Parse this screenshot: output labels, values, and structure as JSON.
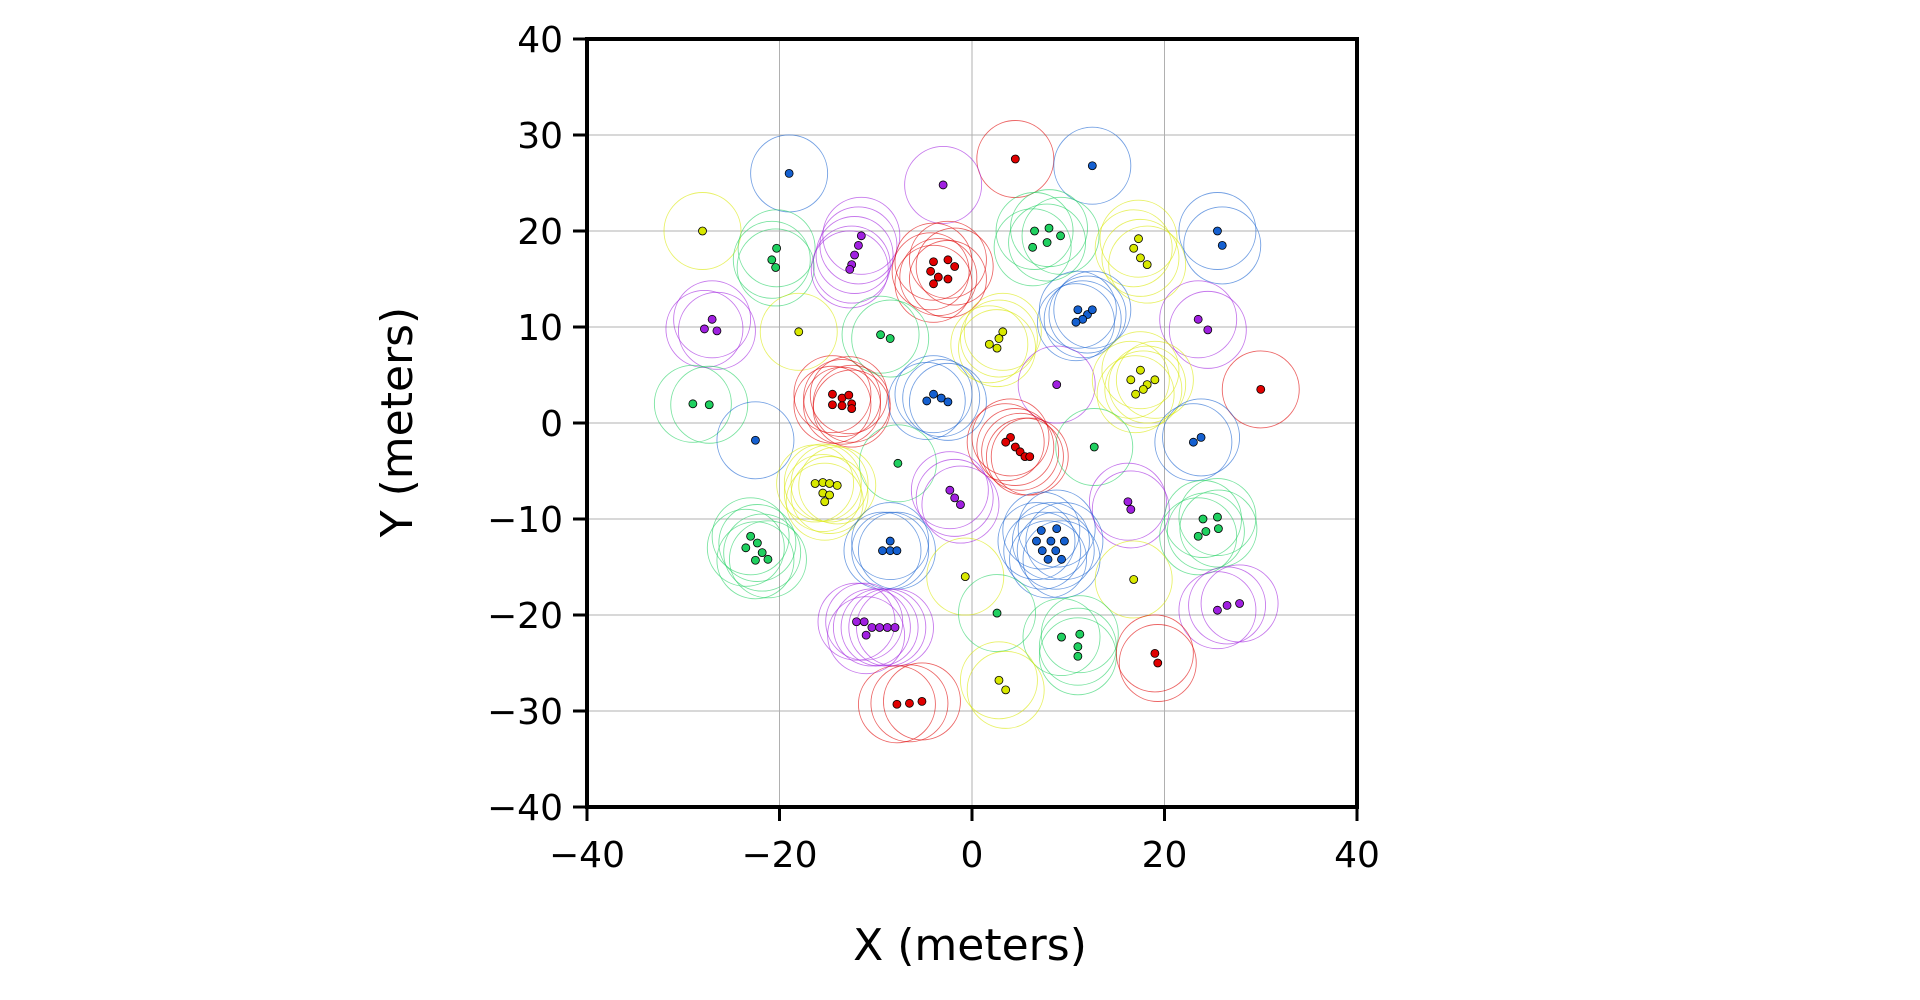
{
  "chart_data": {
    "type": "scatter",
    "title": "",
    "xlabel": "X (meters)",
    "ylabel": "Y (meters)",
    "xlim": [
      -40,
      40
    ],
    "ylim": [
      -40,
      40
    ],
    "x_ticks": [
      -40,
      -20,
      0,
      20,
      40
    ],
    "y_ticks": [
      -40,
      -30,
      -20,
      -10,
      0,
      10,
      20,
      30,
      40
    ],
    "x_tick_labels": [
      "−40",
      "−20",
      "0",
      "20",
      "40"
    ],
    "y_tick_labels": [
      "−40",
      "−30",
      "−20",
      "−10",
      "0",
      "10",
      "20",
      "30",
      "40"
    ],
    "grid": true,
    "legend": "none",
    "circle_radius": 4,
    "colors": {
      "red": "#e00000",
      "blue": "#1560d0",
      "magenta": "#a020e0",
      "green": "#20d060",
      "yellow": "#d8e800"
    },
    "clusters": [
      {
        "color": "blue",
        "points": [
          [
            -19,
            26
          ]
        ]
      },
      {
        "color": "red",
        "points": [
          [
            4.5,
            27.5
          ]
        ]
      },
      {
        "color": "blue",
        "points": [
          [
            12.5,
            26.8
          ]
        ]
      },
      {
        "color": "magenta",
        "points": [
          [
            -3,
            24.8
          ]
        ]
      },
      {
        "color": "yellow",
        "points": [
          [
            -28,
            20
          ]
        ]
      },
      {
        "color": "green",
        "points": [
          [
            -20.3,
            18.2
          ],
          [
            -20.8,
            17
          ],
          [
            -20.4,
            16.2
          ]
        ]
      },
      {
        "color": "magenta",
        "points": [
          [
            -11.5,
            19.5
          ],
          [
            -11.8,
            18.5
          ],
          [
            -12.2,
            17.5
          ],
          [
            -12.5,
            16.5
          ],
          [
            -12.7,
            16
          ]
        ]
      },
      {
        "color": "red",
        "points": [
          [
            -4,
            16.8
          ],
          [
            -2.5,
            17
          ],
          [
            -4.3,
            15.8
          ],
          [
            -1.8,
            16.3
          ],
          [
            -3.5,
            15.2
          ],
          [
            -2.5,
            15
          ],
          [
            -4,
            14.5
          ]
        ]
      },
      {
        "color": "green",
        "points": [
          [
            6.5,
            20
          ],
          [
            8,
            20.3
          ],
          [
            9.2,
            19.5
          ],
          [
            6.3,
            18.3
          ],
          [
            7.8,
            18.8
          ]
        ]
      },
      {
        "color": "yellow",
        "points": [
          [
            17.3,
            19.2
          ],
          [
            16.8,
            18.2
          ],
          [
            17.5,
            17.2
          ],
          [
            18.2,
            16.5
          ]
        ]
      },
      {
        "color": "blue",
        "points": [
          [
            25.5,
            20
          ],
          [
            26,
            18.5
          ]
        ]
      },
      {
        "color": "magenta",
        "points": [
          [
            -27,
            10.8
          ],
          [
            -27.8,
            9.8
          ],
          [
            -26.5,
            9.6
          ]
        ]
      },
      {
        "color": "yellow",
        "points": [
          [
            -18,
            9.5
          ]
        ]
      },
      {
        "color": "green",
        "points": [
          [
            -9.5,
            9.2
          ],
          [
            -8.5,
            8.8
          ]
        ]
      },
      {
        "color": "yellow",
        "points": [
          [
            3.2,
            9.5
          ],
          [
            2.8,
            8.8
          ],
          [
            1.8,
            8.2
          ],
          [
            2.6,
            7.8
          ]
        ]
      },
      {
        "color": "blue",
        "points": [
          [
            11,
            11.8
          ],
          [
            12,
            11.3
          ],
          [
            12.5,
            11.8
          ],
          [
            11.5,
            10.8
          ],
          [
            10.8,
            10.5
          ]
        ]
      },
      {
        "color": "magenta",
        "points": [
          [
            23.5,
            10.8
          ],
          [
            24.5,
            9.7
          ]
        ]
      },
      {
        "color": "green",
        "points": [
          [
            -29,
            2
          ],
          [
            -27.3,
            1.9
          ]
        ]
      },
      {
        "color": "red",
        "points": [
          [
            -14.5,
            3
          ],
          [
            -13.5,
            2.6
          ],
          [
            -12.8,
            2.9
          ],
          [
            -14.5,
            1.9
          ],
          [
            -13.5,
            1.8
          ],
          [
            -12.5,
            2
          ],
          [
            -12.5,
            1.5
          ]
        ]
      },
      {
        "color": "blue",
        "points": [
          [
            -4,
            3
          ],
          [
            -3.2,
            2.6
          ],
          [
            -2.5,
            2.2
          ],
          [
            -4.7,
            2.3
          ]
        ]
      },
      {
        "color": "magenta",
        "points": [
          [
            8.8,
            4
          ]
        ]
      },
      {
        "color": "yellow",
        "points": [
          [
            17.5,
            5.5
          ],
          [
            16.5,
            4.5
          ],
          [
            18.2,
            4
          ],
          [
            19,
            4.5
          ],
          [
            17.8,
            3.5
          ],
          [
            17,
            3
          ]
        ]
      },
      {
        "color": "red",
        "points": [
          [
            30,
            3.5
          ]
        ]
      },
      {
        "color": "blue",
        "points": [
          [
            -22.5,
            -1.8
          ]
        ]
      },
      {
        "color": "red",
        "points": [
          [
            4,
            -1.5
          ],
          [
            3.5,
            -2
          ],
          [
            4.5,
            -2.5
          ],
          [
            5,
            -3
          ],
          [
            5.5,
            -3.5
          ],
          [
            6,
            -3.5
          ]
        ]
      },
      {
        "color": "green",
        "points": [
          [
            12.7,
            -2.5
          ]
        ]
      },
      {
        "color": "blue",
        "points": [
          [
            23,
            -2
          ],
          [
            23.8,
            -1.5
          ]
        ]
      },
      {
        "color": "green",
        "points": [
          [
            -7.7,
            -4.2
          ]
        ]
      },
      {
        "color": "yellow",
        "points": [
          [
            -16.3,
            -6.3
          ],
          [
            -15.5,
            -6.2
          ],
          [
            -14.8,
            -6.3
          ],
          [
            -14,
            -6.5
          ],
          [
            -15.5,
            -7.3
          ],
          [
            -14.8,
            -7.5
          ],
          [
            -15.3,
            -8.2
          ]
        ]
      },
      {
        "color": "magenta",
        "points": [
          [
            -2.3,
            -7
          ],
          [
            -1.8,
            -7.8
          ],
          [
            -1.2,
            -8.5
          ]
        ]
      },
      {
        "color": "magenta",
        "points": [
          [
            16.2,
            -8.2
          ],
          [
            16.5,
            -9
          ]
        ]
      },
      {
        "color": "green",
        "points": [
          [
            24,
            -10
          ],
          [
            25.5,
            -9.8
          ],
          [
            25.6,
            -11
          ],
          [
            24.3,
            -11.3
          ],
          [
            23.5,
            -11.8
          ]
        ]
      },
      {
        "color": "green",
        "points": [
          [
            -23,
            -11.8
          ],
          [
            -22.3,
            -12.5
          ],
          [
            -23.5,
            -13
          ],
          [
            -21.8,
            -13.5
          ],
          [
            -22.5,
            -14.3
          ],
          [
            -21.2,
            -14.2
          ]
        ]
      },
      {
        "color": "blue",
        "points": [
          [
            -8.5,
            -12.3
          ],
          [
            -9.3,
            -13.3
          ],
          [
            -8.5,
            -13.3
          ],
          [
            -7.8,
            -13.3
          ]
        ]
      },
      {
        "color": "blue",
        "points": [
          [
            7.2,
            -11.2
          ],
          [
            8.8,
            -11
          ],
          [
            6.7,
            -12.3
          ],
          [
            8.2,
            -12.3
          ],
          [
            9.6,
            -12.3
          ],
          [
            7.3,
            -13.3
          ],
          [
            8.7,
            -13.3
          ],
          [
            7.9,
            -14.2
          ],
          [
            9.3,
            -14.2
          ]
        ]
      },
      {
        "color": "yellow",
        "points": [
          [
            -0.7,
            -16
          ]
        ]
      },
      {
        "color": "yellow",
        "points": [
          [
            16.8,
            -16.3
          ]
        ]
      },
      {
        "color": "green",
        "points": [
          [
            2.6,
            -19.8
          ]
        ]
      },
      {
        "color": "magenta",
        "points": [
          [
            25.5,
            -19.5
          ],
          [
            26.5,
            -19
          ],
          [
            27.8,
            -18.8
          ]
        ]
      },
      {
        "color": "magenta",
        "points": [
          [
            -12,
            -20.7
          ],
          [
            -11.2,
            -20.7
          ],
          [
            -10.4,
            -21.3
          ],
          [
            -9.6,
            -21.3
          ],
          [
            -8.8,
            -21.3
          ],
          [
            -8,
            -21.3
          ],
          [
            -11,
            -22.1
          ]
        ]
      },
      {
        "color": "green",
        "points": [
          [
            9.3,
            -22.3
          ],
          [
            11.2,
            -22
          ],
          [
            11,
            -23.3
          ],
          [
            11,
            -24.3
          ]
        ]
      },
      {
        "color": "red",
        "points": [
          [
            19,
            -24
          ],
          [
            19.3,
            -25
          ]
        ]
      },
      {
        "color": "yellow",
        "points": [
          [
            2.8,
            -26.8
          ],
          [
            3.5,
            -27.8
          ]
        ]
      },
      {
        "color": "red",
        "points": [
          [
            -7.8,
            -29.3
          ],
          [
            -6.5,
            -29.2
          ],
          [
            -5.2,
            -29
          ]
        ]
      }
    ]
  }
}
